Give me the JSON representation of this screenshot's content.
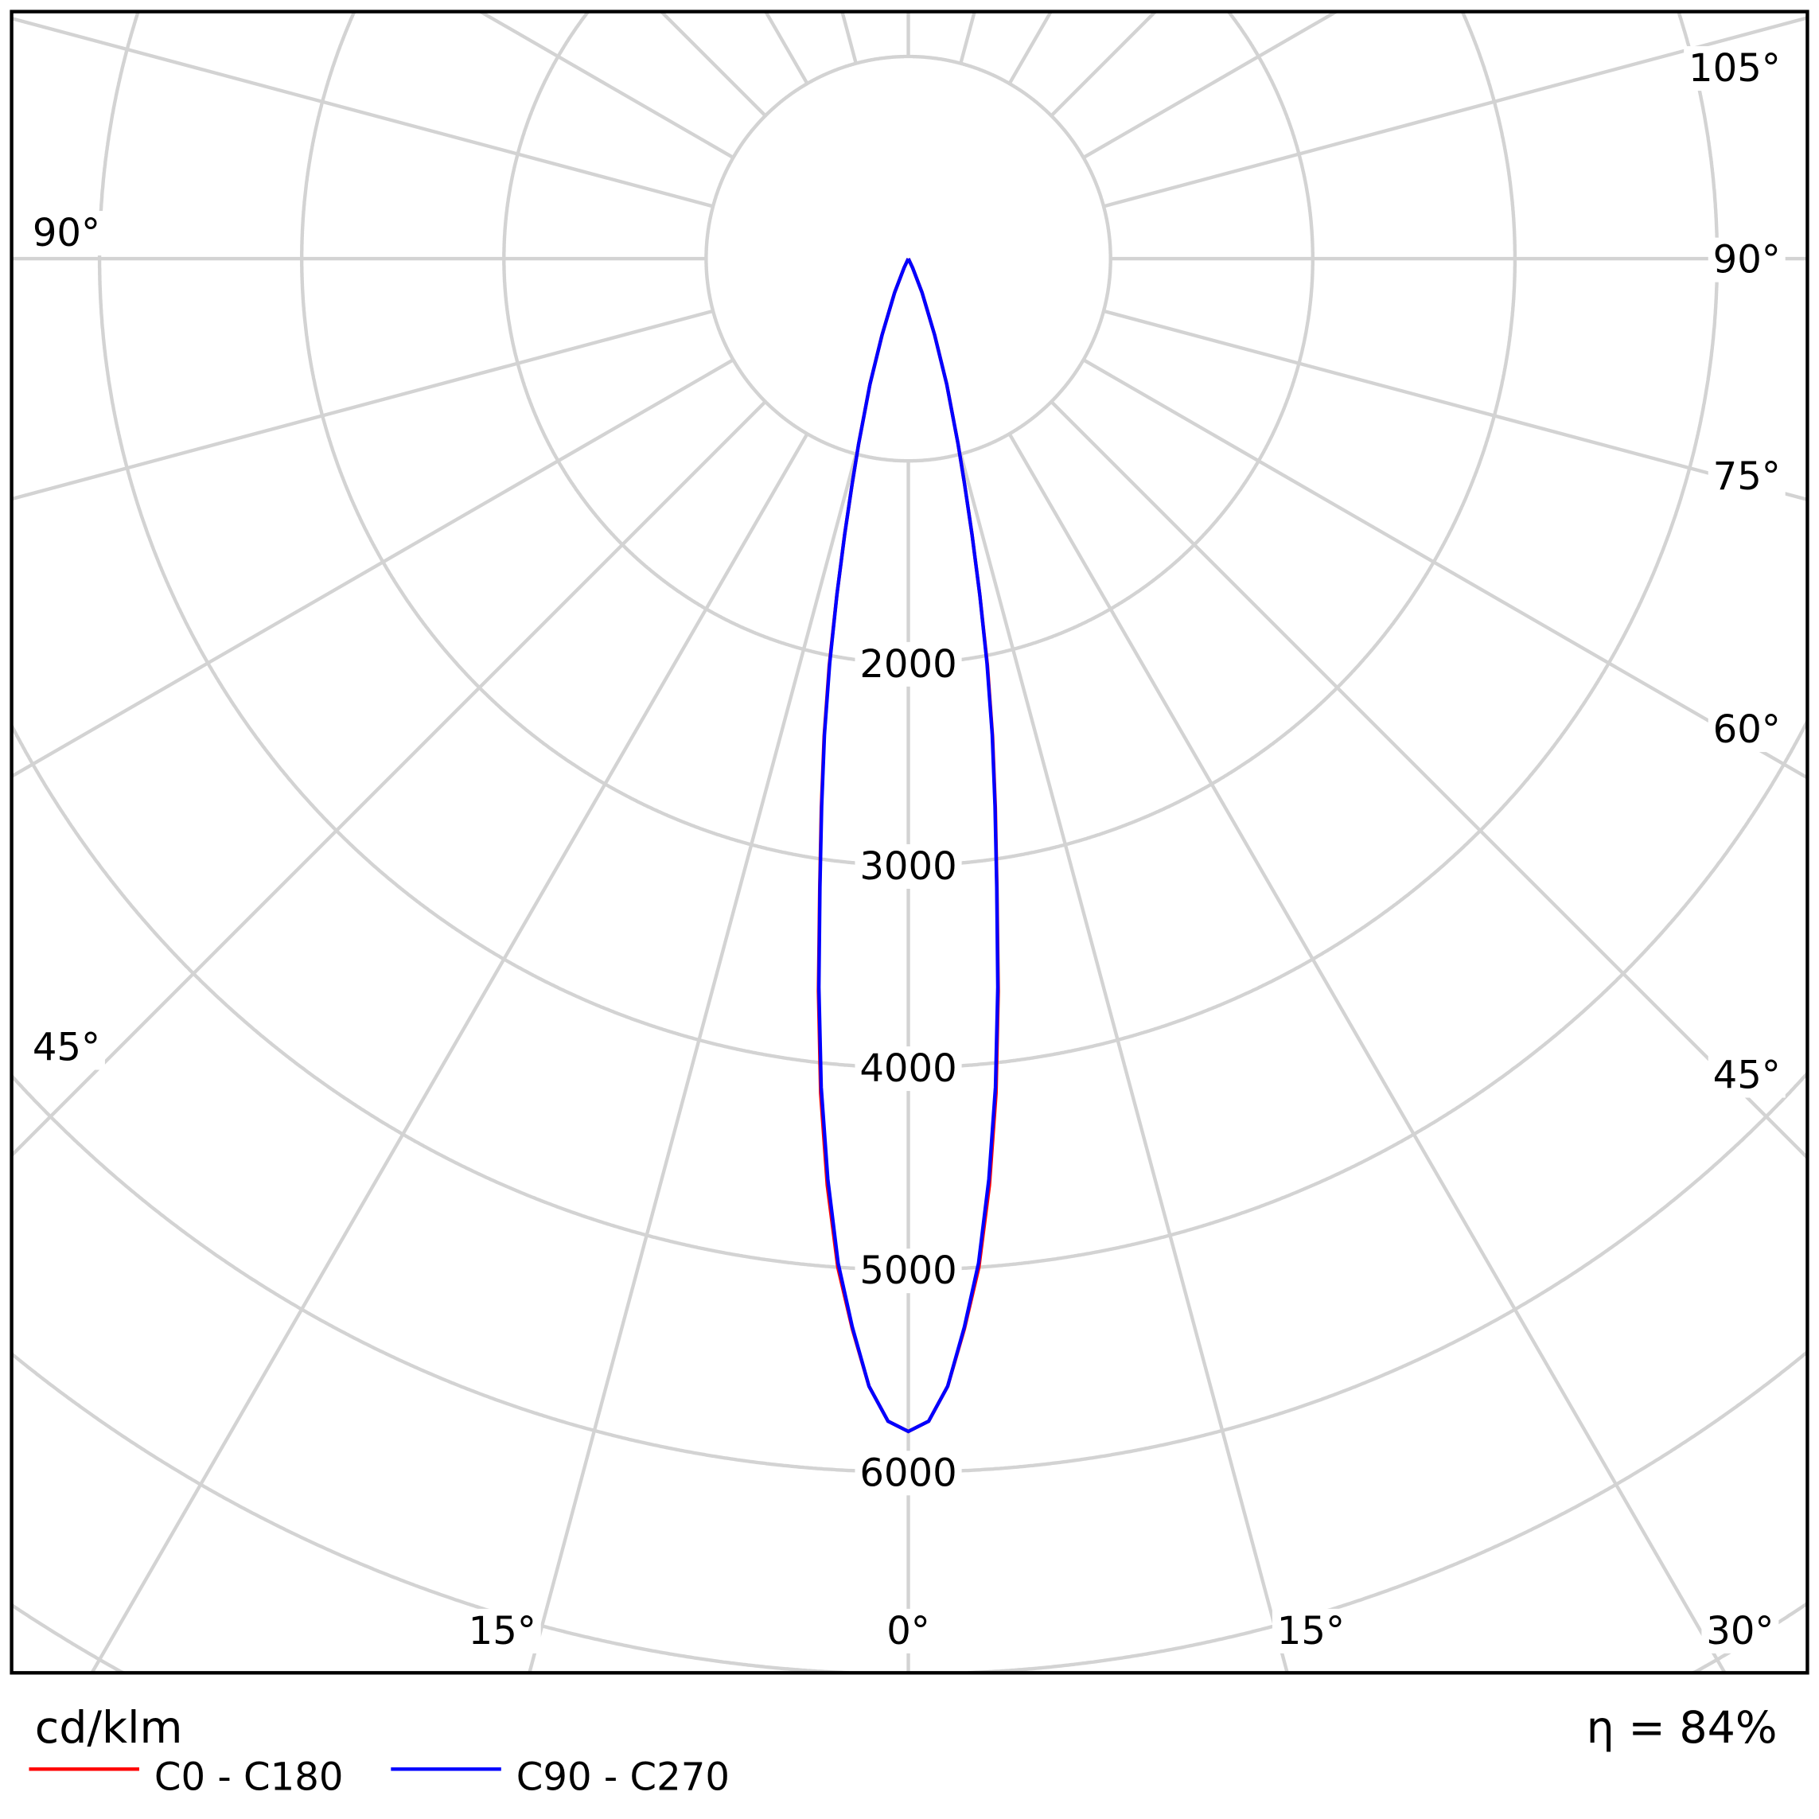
{
  "chart_data": {
    "type": "polar-line",
    "unit_label": "cd/klm",
    "efficiency_label": "η = 84%",
    "radial_ticks": [
      2000,
      3000,
      4000,
      5000,
      6000
    ],
    "radial_grid_step": 1000,
    "angle_grid_step_deg": 15,
    "grid": true,
    "grid_color": "#d3d3d3",
    "legend_placement": "bottom-left",
    "angle_labels": {
      "left": [
        "90°",
        "45°",
        "15°"
      ],
      "bottom": [
        "0°",
        "15°",
        "30°"
      ],
      "right": [
        "105°",
        "90°",
        "75°",
        "60°",
        "45°"
      ]
    },
    "angles_deg": [
      0,
      1,
      2,
      3,
      4,
      5,
      6,
      7,
      8,
      9,
      10,
      11,
      12,
      13,
      14,
      15,
      17,
      19,
      22,
      25,
      30
    ],
    "series": [
      {
        "name": "C0 - C180",
        "color": "#ff0000",
        "values": [
          5800,
          5750,
          5580,
          5300,
          5000,
          4600,
          4150,
          3650,
          3150,
          2750,
          2400,
          2050,
          1700,
          1400,
          1150,
          950,
          650,
          400,
          180,
          50,
          0
        ]
      },
      {
        "name": "C90 - C270",
        "color": "#0000ff",
        "values": [
          5800,
          5750,
          5580,
          5290,
          4980,
          4570,
          4120,
          3630,
          3140,
          2740,
          2390,
          2040,
          1700,
          1400,
          1150,
          950,
          650,
          400,
          180,
          50,
          0
        ]
      }
    ]
  }
}
